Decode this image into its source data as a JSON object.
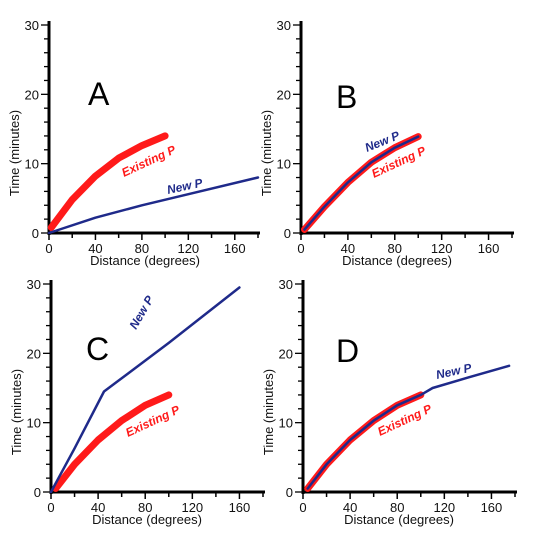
{
  "chart_data": [
    {
      "type": "line",
      "panel_label": "A",
      "xlabel": "Distance (degrees)",
      "ylabel": "Time (minutes)",
      "xlim": [
        0,
        180
      ],
      "ylim": [
        0,
        30
      ],
      "xticks": [
        0,
        40,
        80,
        120,
        160
      ],
      "yticks": [
        0,
        10,
        20,
        30
      ],
      "series": [
        {
          "name": "Existing P",
          "color": "#ff1a1a",
          "style": "thick",
          "x": [
            2,
            20,
            40,
            60,
            80,
            100
          ],
          "y": [
            0.8,
            4.8,
            8.2,
            10.8,
            12.6,
            14.0
          ]
        },
        {
          "name": "New P",
          "color": "#1f2a8a",
          "style": "thin",
          "x": [
            0,
            40,
            80,
            120,
            180
          ],
          "y": [
            0,
            2.2,
            4.0,
            5.6,
            8.0
          ]
        }
      ]
    },
    {
      "type": "line",
      "panel_label": "B",
      "xlabel": "Distance (degrees)",
      "ylabel": "Time (minutes)",
      "xlim": [
        0,
        180
      ],
      "ylim": [
        0,
        30
      ],
      "xticks": [
        0,
        40,
        80,
        120,
        160
      ],
      "yticks": [
        0,
        10,
        20,
        30
      ],
      "series": [
        {
          "name": "Existing P",
          "color": "#ff1a1a",
          "style": "thick",
          "x": [
            3,
            20,
            40,
            60,
            80,
            100
          ],
          "y": [
            0.5,
            3.8,
            7.3,
            10.2,
            12.3,
            13.9
          ]
        },
        {
          "name": "New P",
          "color": "#1f2a8a",
          "style": "thin",
          "x": [
            3,
            20,
            40,
            60,
            80,
            100
          ],
          "y": [
            0.5,
            3.8,
            7.3,
            10.2,
            12.3,
            13.9
          ]
        }
      ]
    },
    {
      "type": "line",
      "panel_label": "C",
      "xlabel": "Distance (degrees)",
      "ylabel": "Time (minutes)",
      "xlim": [
        0,
        180
      ],
      "ylim": [
        0,
        30
      ],
      "xticks": [
        0,
        40,
        80,
        120,
        160
      ],
      "yticks": [
        0,
        10,
        20,
        30
      ],
      "series": [
        {
          "name": "Existing P",
          "color": "#ff1a1a",
          "style": "thick",
          "x": [
            4,
            20,
            40,
            60,
            80,
            100
          ],
          "y": [
            0.5,
            4.0,
            7.5,
            10.3,
            12.5,
            14.0
          ]
        },
        {
          "name": "New P",
          "color": "#1f2a8a",
          "style": "thin",
          "x": [
            0,
            20,
            45,
            100,
            160
          ],
          "y": [
            0,
            6.3,
            14.5,
            21.5,
            29.5
          ]
        }
      ]
    },
    {
      "type": "line",
      "panel_label": "D",
      "xlabel": "Distance (degrees)",
      "ylabel": "Time (minutes)",
      "xlim": [
        0,
        180
      ],
      "ylim": [
        0,
        30
      ],
      "xticks": [
        0,
        40,
        80,
        120,
        160
      ],
      "yticks": [
        0,
        10,
        20,
        30
      ],
      "series": [
        {
          "name": "Existing P",
          "color": "#ff1a1a",
          "style": "thick",
          "x": [
            4,
            20,
            40,
            60,
            80,
            100
          ],
          "y": [
            0.5,
            4.0,
            7.5,
            10.3,
            12.5,
            14.0
          ]
        },
        {
          "name": "New P",
          "color": "#1f2a8a",
          "style": "thin",
          "x": [
            4,
            20,
            40,
            60,
            80,
            100,
            110,
            140,
            175
          ],
          "y": [
            0.5,
            4.0,
            7.5,
            10.3,
            12.5,
            14.0,
            15.0,
            16.5,
            18.2
          ]
        }
      ]
    }
  ]
}
